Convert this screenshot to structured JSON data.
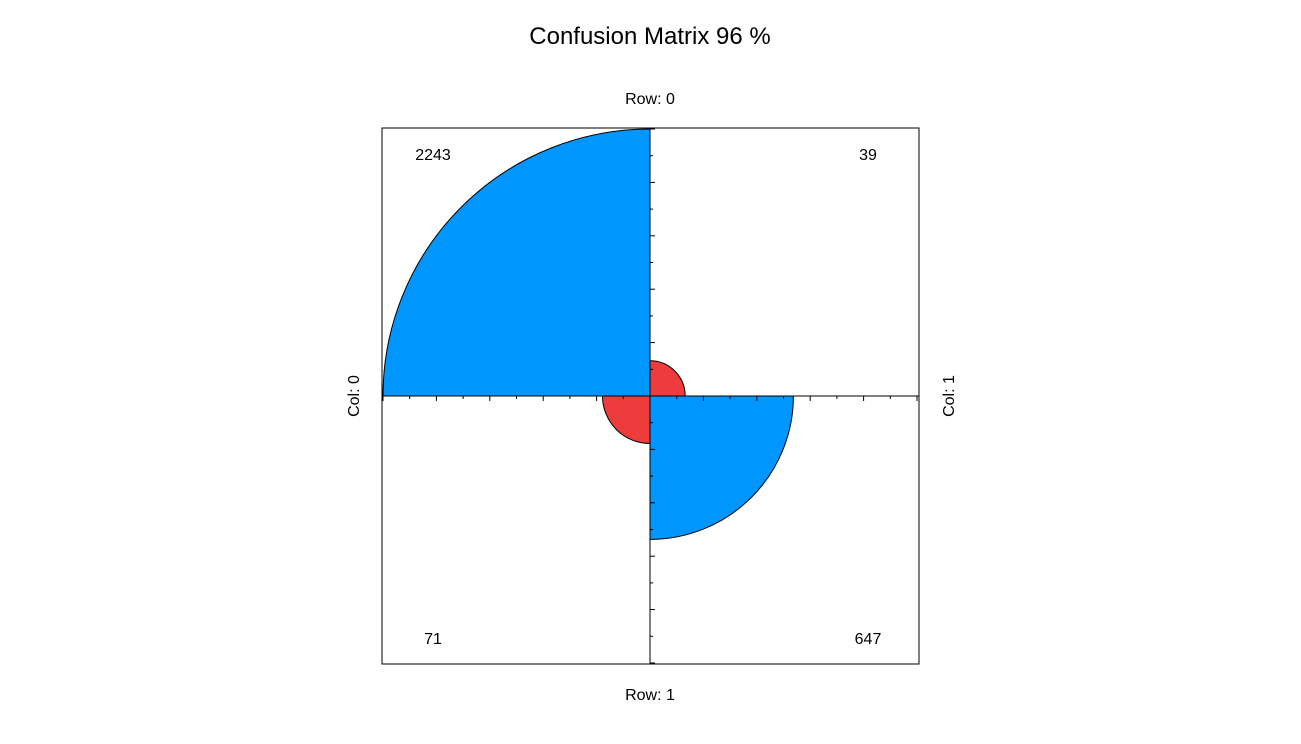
{
  "chart_data": {
    "type": "fourfold",
    "title": "Confusion Matrix 96 %",
    "row_labels": [
      "Row: 0",
      "Row: 1"
    ],
    "col_labels": [
      "Col: 0",
      "Col: 1"
    ],
    "cells": [
      {
        "row": 0,
        "col": 0,
        "count": "2243",
        "value": 2243
      },
      {
        "row": 0,
        "col": 1,
        "count": "39",
        "value": 39
      },
      {
        "row": 1,
        "col": 0,
        "count": "71",
        "value": 71
      },
      {
        "row": 1,
        "col": 1,
        "count": "647",
        "value": 647
      }
    ],
    "colors": {
      "diagonal": "#0096FF",
      "off_diagonal": "#EE3B3B",
      "outline": "#000000"
    },
    "tick_count": 10
  }
}
